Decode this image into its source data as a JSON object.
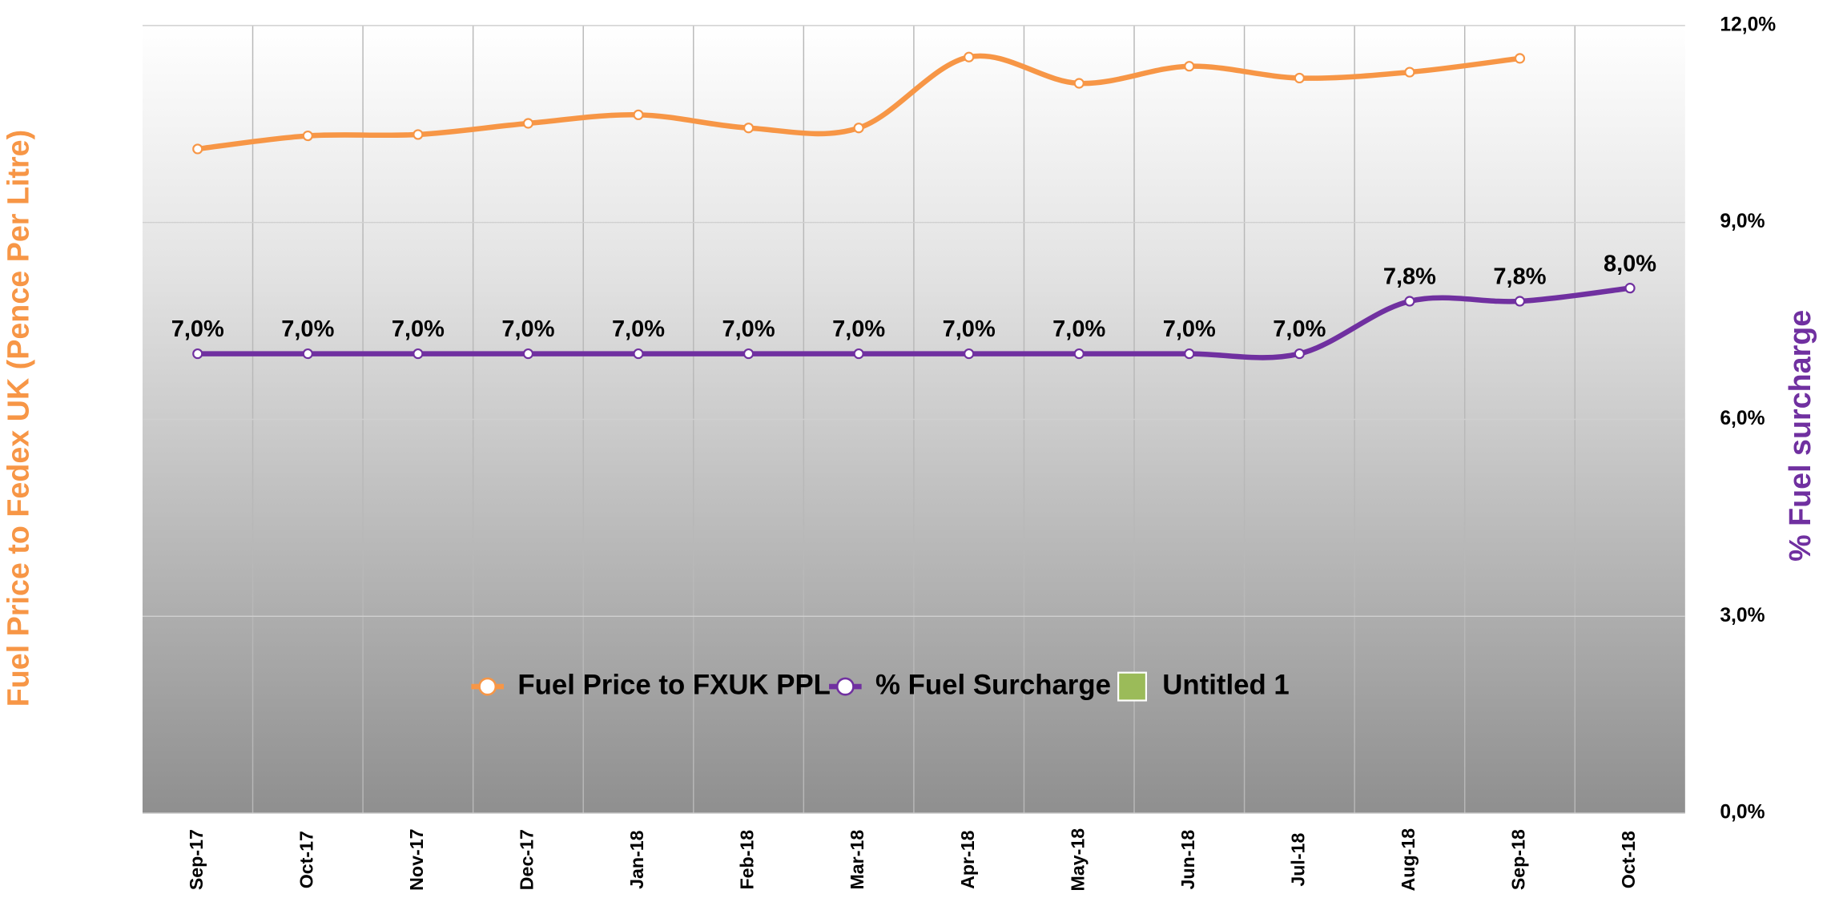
{
  "chart_data": {
    "type": "line",
    "categories": [
      "Sep-17",
      "Oct-17",
      "Nov-17",
      "Dec-17",
      "Jan-18",
      "Feb-18",
      "Mar-18",
      "Apr-18",
      "May-18",
      "Jun-18",
      "Jul-18",
      "Aug-18",
      "Sep-18",
      "Oct-18"
    ],
    "ylabel": "Fuel Price to Fedex  UK (Pence Per Litre)",
    "y2label": "% Fuel surcharge",
    "ylim": [
      0,
      12
    ],
    "y2lim": [
      0,
      12
    ],
    "y2ticks": [
      {
        "value": 0,
        "label": "0,0%"
      },
      {
        "value": 3,
        "label": "3,0%"
      },
      {
        "value": 6,
        "label": "6,0%"
      },
      {
        "value": 9,
        "label": "9,0%"
      },
      {
        "value": 12,
        "label": "12,0%"
      }
    ],
    "grid": true,
    "smooth": true,
    "legend": "bottom",
    "series": [
      {
        "name": "Fuel Price to FXUK PPL",
        "color": "#f79646",
        "values": [
          10.12,
          10.32,
          10.34,
          10.51,
          10.64,
          10.44,
          10.44,
          11.52,
          11.12,
          11.38,
          11.2,
          11.29,
          11.5,
          null
        ]
      },
      {
        "name": "% Fuel Surcharge",
        "color": "#7030a0",
        "axis": "y2",
        "values": [
          7,
          7,
          7,
          7,
          7,
          7,
          7,
          7,
          7,
          7,
          7,
          7.8,
          7.8,
          8
        ],
        "value_labels": [
          "7,0%",
          "7,0%",
          "7,0%",
          "7,0%",
          "7,0%",
          "7,0%",
          "7,0%",
          "7,0%",
          "7,0%",
          "7,0%",
          "7,0%",
          "7,8%",
          "7,8%",
          "8,0%"
        ]
      },
      {
        "name": "Untitled 1",
        "color": "#9bbb59",
        "type": "bar",
        "values": [
          null,
          null,
          null,
          null,
          null,
          null,
          null,
          null,
          null,
          null,
          null,
          null,
          null,
          null
        ]
      }
    ]
  }
}
